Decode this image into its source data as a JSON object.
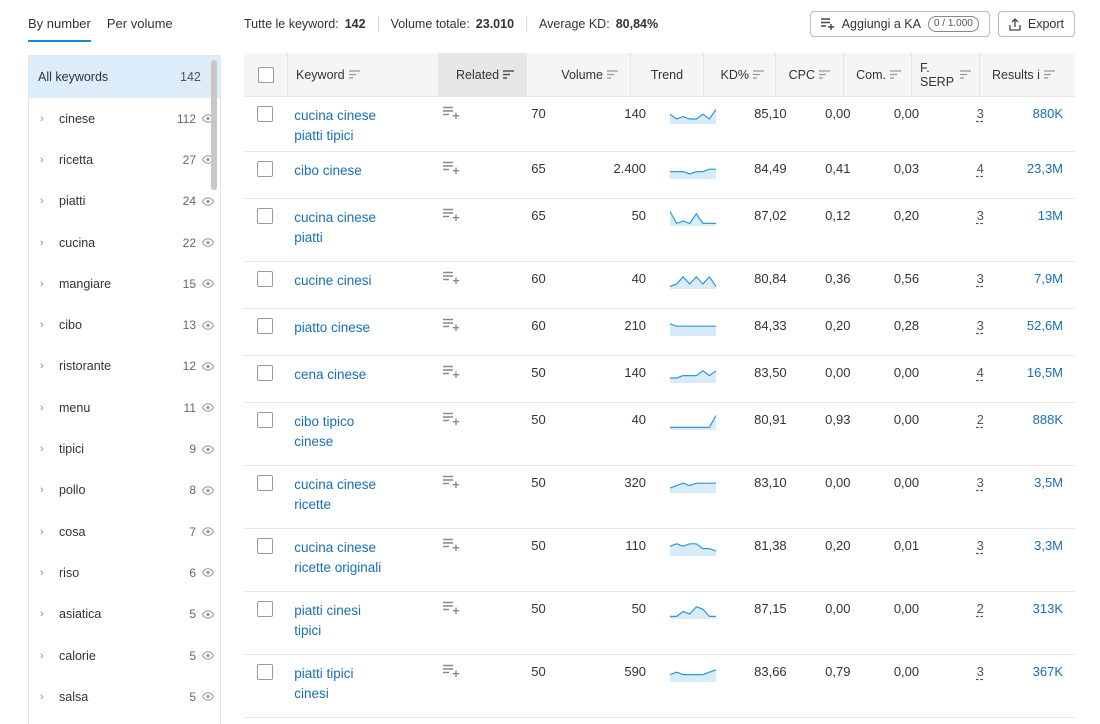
{
  "tabs": [
    {
      "label": "By number",
      "active": true
    },
    {
      "label": "Per volume",
      "active": false
    }
  ],
  "stats": {
    "keywords_label": "Tutte le keyword:",
    "keywords_value": "142",
    "volume_label": "Volume totale:",
    "volume_value": "23.010",
    "kd_label": "Average KD:",
    "kd_value": "80,84%"
  },
  "buttons": {
    "add_label": "Aggiungi a KA",
    "add_counter": "0 / 1.000",
    "export_label": "Export"
  },
  "sidebar": {
    "all_label": "All keywords",
    "all_count": "142",
    "items": [
      {
        "label": "cinese",
        "count": "112"
      },
      {
        "label": "ricetta",
        "count": "27"
      },
      {
        "label": "piatti",
        "count": "24"
      },
      {
        "label": "cucina",
        "count": "22"
      },
      {
        "label": "mangiare",
        "count": "15"
      },
      {
        "label": "cibo",
        "count": "13"
      },
      {
        "label": "ristorante",
        "count": "12"
      },
      {
        "label": "menu",
        "count": "11"
      },
      {
        "label": "tipici",
        "count": "9"
      },
      {
        "label": "pollo",
        "count": "8"
      },
      {
        "label": "cosa",
        "count": "7"
      },
      {
        "label": "riso",
        "count": "6"
      },
      {
        "label": "asiatica",
        "count": "5"
      },
      {
        "label": "calorie",
        "count": "5"
      },
      {
        "label": "salsa",
        "count": "5"
      }
    ]
  },
  "table": {
    "headers": {
      "keyword": "Keyword",
      "related": "Related",
      "volume": "Volume",
      "trend": "Trend",
      "kd": "KD%",
      "cpc": "CPC",
      "com": "Com.",
      "serp": "F. SERP",
      "results": "Results i"
    },
    "rows": [
      {
        "kw1": "cucina cinese",
        "kw2": "piatti tipici",
        "related": "70",
        "volume": "140",
        "kd": "85,10",
        "cpc": "0,00",
        "com": "0,00",
        "serp": "3",
        "results": "880K",
        "trend": [
          3,
          5,
          4,
          5,
          5,
          3,
          5,
          1
        ]
      },
      {
        "kw1": "cibo cinese",
        "kw2": "",
        "related": "65",
        "volume": "2.400",
        "kd": "84,49",
        "cpc": "0,41",
        "com": "0,03",
        "serp": "4",
        "results": "23,3M",
        "trend": [
          4,
          4,
          4,
          5,
          4,
          4,
          3,
          3
        ]
      },
      {
        "kw1": "cucina cinese",
        "kw2": "piatti",
        "related": "65",
        "volume": "50",
        "kd": "87,02",
        "cpc": "0,12",
        "com": "0,20",
        "serp": "3",
        "results": "13M",
        "trend": [
          1,
          6,
          5,
          6,
          2,
          6,
          6,
          6
        ]
      },
      {
        "kw1": "cucine cinesi",
        "kw2": "",
        "related": "60",
        "volume": "40",
        "kd": "80,84",
        "cpc": "0,36",
        "com": "0,56",
        "serp": "3",
        "results": "7,9M",
        "trend": [
          6,
          5,
          2,
          5,
          2,
          5,
          2,
          6
        ]
      },
      {
        "kw1": "piatto cinese",
        "kw2": "",
        "related": "60",
        "volume": "210",
        "kd": "84,33",
        "cpc": "0,20",
        "com": "0,28",
        "serp": "3",
        "results": "52,6M",
        "trend": [
          2,
          3,
          3,
          3,
          3,
          3,
          3,
          3
        ]
      },
      {
        "kw1": "cena cinese",
        "kw2": "",
        "related": "50",
        "volume": "140",
        "kd": "83,50",
        "cpc": "0,00",
        "com": "0,00",
        "serp": "4",
        "results": "16,5M",
        "trend": [
          5,
          5,
          4,
          4,
          4,
          2,
          4,
          2
        ]
      },
      {
        "kw1": "cibo tipico",
        "kw2": "cinese",
        "related": "50",
        "volume": "40",
        "kd": "80,91",
        "cpc": "0,93",
        "com": "0,00",
        "serp": "2",
        "results": "888K",
        "trend": [
          6,
          6,
          6,
          6,
          6,
          6,
          6,
          1
        ]
      },
      {
        "kw1": "cucina cinese",
        "kw2": "ricette",
        "related": "50",
        "volume": "320",
        "kd": "83,10",
        "cpc": "0,00",
        "com": "0,00",
        "serp": "3",
        "results": "3,5M",
        "trend": [
          5,
          4,
          3,
          4,
          3,
          3,
          3,
          3
        ]
      },
      {
        "kw1": "cucina cinese",
        "kw2": "ricette originali",
        "related": "50",
        "volume": "110",
        "kd": "81,38",
        "cpc": "0,20",
        "com": "0,01",
        "serp": "3",
        "results": "3,3M",
        "trend": [
          3,
          2,
          3,
          2,
          2,
          4,
          4,
          5
        ]
      },
      {
        "kw1": "piatti cinesi",
        "kw2": "tipici",
        "related": "50",
        "volume": "50",
        "kd": "87,15",
        "cpc": "0,00",
        "com": "0,00",
        "serp": "2",
        "results": "313K",
        "trend": [
          6,
          6,
          4,
          5,
          2,
          3,
          6,
          6
        ]
      },
      {
        "kw1": "piatti tipici",
        "kw2": "cinesi",
        "related": "50",
        "volume": "590",
        "kd": "83,66",
        "cpc": "0,79",
        "com": "0,00",
        "serp": "3",
        "results": "367K",
        "trend": [
          4,
          3,
          4,
          4,
          4,
          4,
          3,
          2
        ]
      }
    ]
  },
  "colors": {
    "accent": "#1a86d6",
    "link": "#1770b3",
    "sidebar_selected": "#dcecf9",
    "trend_line": "#2d9ad8",
    "trend_fill": "#d7ebf8"
  },
  "icons": {
    "sort": "sort-lines-icon",
    "add_to_list": "playlist-add-icon",
    "eye": "eye-icon",
    "chevron": "chevron-right-icon",
    "export": "export-upload-icon"
  }
}
